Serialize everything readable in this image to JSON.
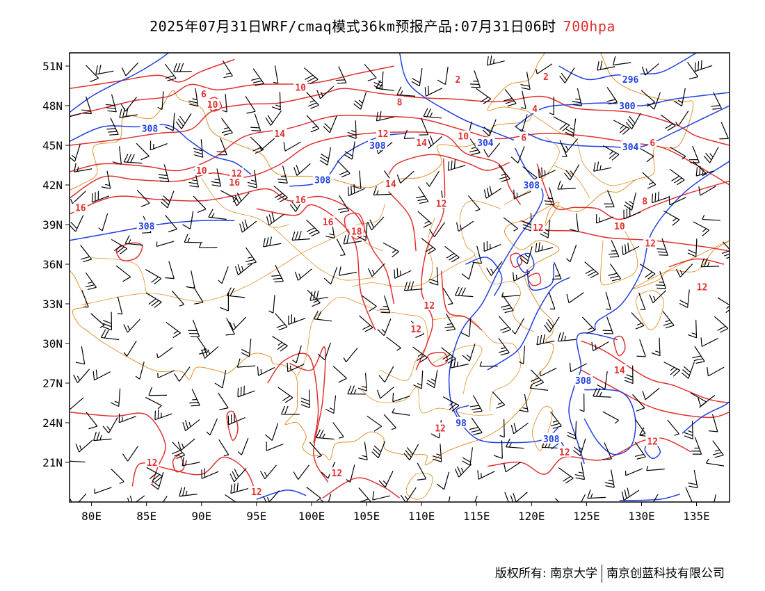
{
  "title": {
    "main": "2025年07月31日WRF/cmaq模式36km预报产品:07月31日06时",
    "level": "700hpa"
  },
  "axes": {
    "lat_labels": [
      "51N",
      "48N",
      "45N",
      "42N",
      "39N",
      "36N",
      "33N",
      "30N",
      "27N",
      "24N",
      "21N"
    ],
    "lat_values": [
      51,
      48,
      45,
      42,
      39,
      36,
      33,
      30,
      27,
      24,
      21
    ],
    "lon_labels": [
      "80E",
      "85E",
      "90E",
      "95E",
      "100E",
      "105E",
      "110E",
      "115E",
      "120E",
      "125E",
      "130E",
      "135E"
    ],
    "lon_values": [
      80,
      85,
      90,
      95,
      100,
      105,
      110,
      115,
      120,
      125,
      130,
      135
    ],
    "lon_range": [
      78,
      138
    ],
    "lat_range": [
      18,
      52
    ]
  },
  "legend_colors": {
    "geopotential_height": "#2040e0",
    "temperature": "#e03030",
    "boundaries": "#e0902a",
    "wind": "#000000"
  },
  "contour_labels": {
    "height": [
      {
        "text": "308",
        "lon": 85.3,
        "lat": 46.3
      },
      {
        "text": "308",
        "lon": 85.0,
        "lat": 38.9
      },
      {
        "text": "308",
        "lon": 106.0,
        "lat": 45.0
      },
      {
        "text": "308",
        "lon": 101.0,
        "lat": 42.4
      },
      {
        "text": "308",
        "lon": 120.0,
        "lat": 42.0
      },
      {
        "text": "308",
        "lon": 124.7,
        "lat": 27.2
      },
      {
        "text": "308",
        "lon": 121.8,
        "lat": 22.8
      },
      {
        "text": "296",
        "lon": 129.0,
        "lat": 50.0
      },
      {
        "text": "300",
        "lon": 128.7,
        "lat": 48.0
      },
      {
        "text": "304",
        "lon": 115.8,
        "lat": 45.2
      },
      {
        "text": "304",
        "lon": 129.0,
        "lat": 44.9
      },
      {
        "text": "98",
        "lon": 113.6,
        "lat": 24.0
      }
    ],
    "temperature": [
      {
        "text": "2",
        "lon": 113.3,
        "lat": 50.0
      },
      {
        "text": "2",
        "lon": 121.3,
        "lat": 50.2
      },
      {
        "text": "6",
        "lon": 90.2,
        "lat": 48.9
      },
      {
        "text": "8",
        "lon": 108.0,
        "lat": 48.3
      },
      {
        "text": "10",
        "lon": 99.0,
        "lat": 49.4
      },
      {
        "text": "10",
        "lon": 91.0,
        "lat": 48.1
      },
      {
        "text": "10",
        "lon": 113.8,
        "lat": 45.7
      },
      {
        "text": "6",
        "lon": 119.3,
        "lat": 45.6
      },
      {
        "text": "4",
        "lon": 120.3,
        "lat": 47.8
      },
      {
        "text": "6",
        "lon": 131.0,
        "lat": 45.2
      },
      {
        "text": "12",
        "lon": 106.5,
        "lat": 45.9
      },
      {
        "text": "14",
        "lon": 97.1,
        "lat": 45.9
      },
      {
        "text": "14",
        "lon": 110.0,
        "lat": 45.2
      },
      {
        "text": "10",
        "lon": 90.0,
        "lat": 43.1
      },
      {
        "text": "12",
        "lon": 93.2,
        "lat": 42.9
      },
      {
        "text": "16",
        "lon": 93.0,
        "lat": 42.2
      },
      {
        "text": "14",
        "lon": 107.2,
        "lat": 42.1
      },
      {
        "text": "16",
        "lon": 79.0,
        "lat": 40.3
      },
      {
        "text": "16",
        "lon": 99.0,
        "lat": 40.9
      },
      {
        "text": "16",
        "lon": 101.5,
        "lat": 39.2
      },
      {
        "text": "18",
        "lon": 104.1,
        "lat": 38.5
      },
      {
        "text": "12",
        "lon": 111.8,
        "lat": 40.6
      },
      {
        "text": "12",
        "lon": 120.6,
        "lat": 38.8
      },
      {
        "text": "8",
        "lon": 130.3,
        "lat": 40.8
      },
      {
        "text": "10",
        "lon": 128.0,
        "lat": 38.9
      },
      {
        "text": "12",
        "lon": 130.8,
        "lat": 37.6
      },
      {
        "text": "12",
        "lon": 135.5,
        "lat": 34.3
      },
      {
        "text": "12",
        "lon": 110.7,
        "lat": 32.9
      },
      {
        "text": "12",
        "lon": 109.5,
        "lat": 31.1
      },
      {
        "text": "14",
        "lon": 128.0,
        "lat": 28.0
      },
      {
        "text": "12",
        "lon": 111.7,
        "lat": 23.6
      },
      {
        "text": "12",
        "lon": 131.0,
        "lat": 22.6
      },
      {
        "text": "12",
        "lon": 123.0,
        "lat": 21.8
      },
      {
        "text": "12",
        "lon": 85.5,
        "lat": 21.0
      },
      {
        "text": "12",
        "lon": 102.3,
        "lat": 20.2
      },
      {
        "text": "12",
        "lon": 95.0,
        "lat": 18.8
      }
    ]
  },
  "footer": {
    "left": "版权所有: 南京大学",
    "right": "南京创蓝科技有限公司"
  }
}
